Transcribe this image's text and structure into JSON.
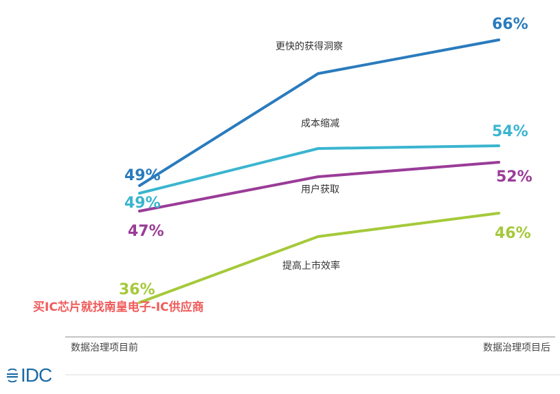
{
  "chart_data": {
    "type": "line",
    "categories": [
      "数据治理项目前",
      "数据治理项目后"
    ],
    "series": [
      {
        "name": "更快的获得洞察",
        "color": "#2a7bbd",
        "values": [
          49,
          66
        ],
        "mid": 59.5,
        "labels": [
          "49%",
          "66%"
        ]
      },
      {
        "name": "成本缩减",
        "color": "#3ab5cf",
        "values": [
          49,
          54
        ],
        "mid": 53.2,
        "labels": [
          "49%",
          "54%"
        ]
      },
      {
        "name": "用户获取",
        "color": "#9a3c98",
        "values": [
          47,
          52
        ],
        "mid": 50.5,
        "labels": [
          "47%",
          "52%"
        ]
      },
      {
        "name": "提高上市效率",
        "color": "#a5c93a",
        "values": [
          36,
          46
        ],
        "mid": 43.5,
        "labels": [
          "36%",
          "46%"
        ]
      }
    ]
  },
  "watermark": "买IC芯片就找南皇电子-IC供应商",
  "logo_text": "IDC"
}
